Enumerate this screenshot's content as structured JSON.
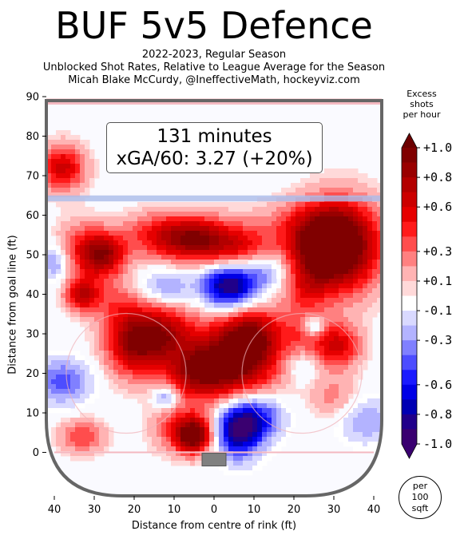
{
  "header": {
    "title": "BUF 5v5 Defence",
    "subtitle_1": "2022-2023, Regular Season",
    "subtitle_2": "Unblocked Shot Rates, Relative to League Average for the Season",
    "subtitle_3": "Micah Blake McCurdy, @IneffectiveMath, hockeyviz.com"
  },
  "infobox": {
    "minutes": "131 minutes",
    "xga": "xGA/60: 3.27 (+20%)"
  },
  "legend": {
    "title_1": "Excess",
    "title_2": "shots",
    "title_3": "per hour",
    "unit_1": "per",
    "unit_2": "100",
    "unit_3": "sqft"
  },
  "chart_data": {
    "type": "heatmap",
    "title": "BUF 5v5 Defence",
    "xlabel": "Distance from centre of rink (ft)",
    "ylabel": "Distance from goal line (ft)",
    "xlim": [
      -42,
      42
    ],
    "ylim": [
      -11,
      90
    ],
    "x_ticks": [
      -40,
      -30,
      -20,
      -10,
      0,
      10,
      20,
      30,
      40
    ],
    "x_tick_labels": [
      "40",
      "30",
      "20",
      "10",
      "0",
      "10",
      "20",
      "30",
      "40"
    ],
    "y_ticks": [
      0,
      10,
      20,
      30,
      40,
      50,
      60,
      70,
      80,
      90
    ],
    "y_tick_labels": [
      "0",
      "10",
      "20",
      "30",
      "40",
      "50",
      "60",
      "70",
      "80",
      "90"
    ],
    "colorbar": {
      "min": -1.0,
      "max": 1.0,
      "ticks": [
        1.0,
        0.8,
        0.6,
        0.3,
        0.1,
        -0.1,
        -0.3,
        -0.6,
        -0.8,
        -1.0
      ],
      "tick_labels": [
        "+1.0",
        "+0.8",
        "+0.6",
        "+0.3",
        "+0.1",
        "-0.1",
        "-0.3",
        "-0.6",
        "-0.8",
        "-1.0"
      ],
      "colors": [
        "#800000",
        "#990000",
        "#b30000",
        "#cc0000",
        "#e60000",
        "#ff1a1a",
        "#ff4d4d",
        "#ff8080",
        "#ffb3b3",
        "#ffd9d9",
        "#ffffff",
        "#d9d9ff",
        "#b3b3ff",
        "#8080ff",
        "#4d4dff",
        "#1a1aff",
        "#0000e6",
        "#0000b3",
        "#20008a",
        "#3a0070"
      ]
    },
    "hotspots": [
      {
        "x": 32,
        "y": 52,
        "value": 1.0,
        "sx": 7,
        "sy": 8
      },
      {
        "x": 26,
        "y": 52,
        "value": 0.6,
        "sx": 6,
        "sy": 6
      },
      {
        "x": 31,
        "y": 27,
        "value": 0.6,
        "sx": 4,
        "sy": 4
      },
      {
        "x": 23,
        "y": 31,
        "value": 0.35,
        "sx": 4,
        "sy": 5
      },
      {
        "x": 23,
        "y": 42,
        "value": 0.3,
        "sx": 4,
        "sy": 4
      },
      {
        "x": 30,
        "y": 14,
        "value": 0.25,
        "sx": 4,
        "sy": 4
      },
      {
        "x": 6,
        "y": 52,
        "value": 0.5,
        "sx": 6,
        "sy": 4
      },
      {
        "x": -5,
        "y": 54,
        "value": 0.8,
        "sx": 6,
        "sy": 4
      },
      {
        "x": -15,
        "y": 55,
        "value": 0.4,
        "sx": 6,
        "sy": 4
      },
      {
        "x": -28,
        "y": 50,
        "value": 0.85,
        "sx": 4,
        "sy": 4
      },
      {
        "x": -33,
        "y": 40,
        "value": 0.7,
        "sx": 3,
        "sy": 3
      },
      {
        "x": -34,
        "y": 52,
        "value": 0.3,
        "sx": 4,
        "sy": 5
      },
      {
        "x": -38,
        "y": 72,
        "value": 0.65,
        "sx": 4,
        "sy": 4
      },
      {
        "x": -20,
        "y": 28,
        "value": 0.85,
        "sx": 5,
        "sy": 6
      },
      {
        "x": -12,
        "y": 30,
        "value": 0.6,
        "sx": 5,
        "sy": 5
      },
      {
        "x": 4,
        "y": 23,
        "value": 1.0,
        "sx": 8,
        "sy": 7
      },
      {
        "x": 10,
        "y": 30,
        "value": 0.6,
        "sx": 5,
        "sy": 5
      },
      {
        "x": -5,
        "y": 20,
        "value": 0.5,
        "sx": 5,
        "sy": 4
      },
      {
        "x": -5,
        "y": 4,
        "value": 0.85,
        "sx": 3,
        "sy": 3
      },
      {
        "x": -8,
        "y": 6,
        "value": 0.45,
        "sx": 5,
        "sy": 4
      },
      {
        "x": -33,
        "y": 4,
        "value": 0.4,
        "sx": 4,
        "sy": 3
      },
      {
        "x": 22,
        "y": 58,
        "value": 0.2,
        "sx": 10,
        "sy": 4
      },
      {
        "x": -25,
        "y": 38,
        "value": 0.25,
        "sx": 4,
        "sy": 4
      },
      {
        "x": 4,
        "y": 42,
        "value": -0.95,
        "sx": 5,
        "sy": 4
      },
      {
        "x": -12,
        "y": 42,
        "value": -0.35,
        "sx": 4,
        "sy": 3
      },
      {
        "x": 14,
        "y": 46,
        "value": -0.3,
        "sx": 4,
        "sy": 3
      },
      {
        "x": 6,
        "y": 6,
        "value": -0.95,
        "sx": 4,
        "sy": 5
      },
      {
        "x": 12,
        "y": 9,
        "value": -0.5,
        "sx": 4,
        "sy": 4
      },
      {
        "x": -38,
        "y": 18,
        "value": -0.45,
        "sx": 5,
        "sy": 4
      },
      {
        "x": -40,
        "y": 48,
        "value": -0.35,
        "sx": 2.5,
        "sy": 3
      },
      {
        "x": -12,
        "y": 14,
        "value": -0.4,
        "sx": 2,
        "sy": 2
      },
      {
        "x": 25,
        "y": 32,
        "value": -0.5,
        "sx": 2,
        "sy": 2
      },
      {
        "x": 38,
        "y": 8,
        "value": -0.3,
        "sx": 5,
        "sy": 4
      },
      {
        "x": 22,
        "y": 22,
        "value": -0.2,
        "sx": 3,
        "sy": 3
      }
    ]
  }
}
